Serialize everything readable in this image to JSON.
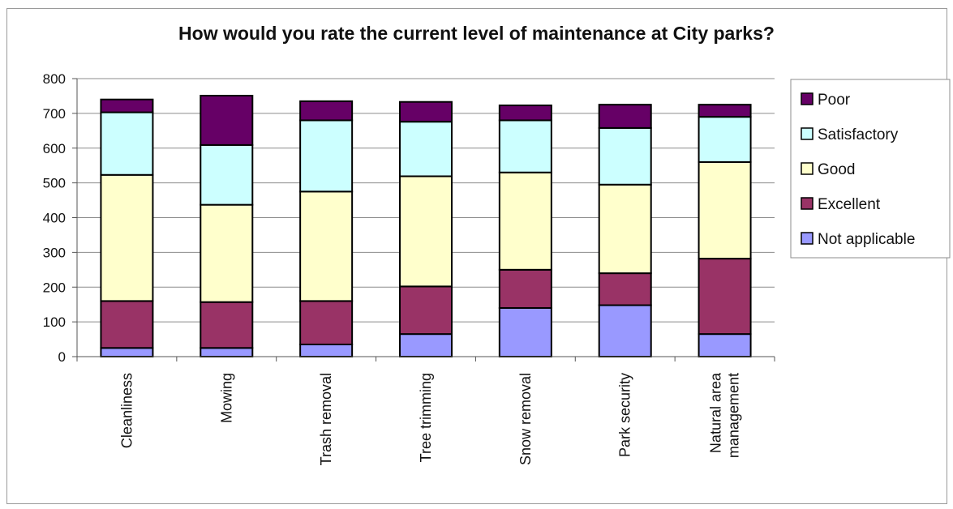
{
  "chart_data": {
    "type": "bar",
    "stacked": true,
    "title": "How would you rate the current level of maintenance at City parks?",
    "xlabel": "",
    "ylabel": "",
    "ylim": [
      0,
      800
    ],
    "yticks": [
      0,
      100,
      200,
      300,
      400,
      500,
      600,
      700,
      800
    ],
    "grid": true,
    "legend_position": "right",
    "categories": [
      [
        "Cleanliness"
      ],
      [
        "Mowing"
      ],
      [
        "Trash removal"
      ],
      [
        "Tree trimming"
      ],
      [
        "Snow removal"
      ],
      [
        "Park security"
      ],
      [
        "Natural area",
        "management"
      ]
    ],
    "series": [
      {
        "name": "Not applicable",
        "color": "#9999ff",
        "values": [
          25,
          25,
          35,
          65,
          140,
          148,
          65
        ]
      },
      {
        "name": "Excellent",
        "color": "#993366",
        "values": [
          135,
          132,
          125,
          137,
          110,
          92,
          217
        ]
      },
      {
        "name": "Good",
        "color": "#ffffcc",
        "values": [
          363,
          280,
          315,
          317,
          280,
          255,
          278
        ]
      },
      {
        "name": "Satisfactory",
        "color": "#ccffff",
        "values": [
          180,
          172,
          205,
          157,
          150,
          163,
          130
        ]
      },
      {
        "name": "Poor",
        "color": "#660066",
        "values": [
          37,
          142,
          55,
          57,
          43,
          67,
          35
        ]
      }
    ],
    "legend_order": [
      "Poor",
      "Satisfactory",
      "Good",
      "Excellent",
      "Not applicable"
    ]
  }
}
